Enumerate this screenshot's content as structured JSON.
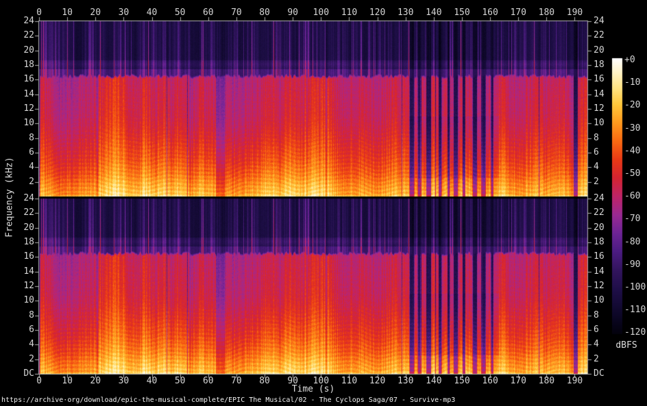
{
  "page": {
    "background": "#000000"
  },
  "title_comment": {
    "url_text": "https://archive·org/download/epic-the-musical-complete/EPIC The Musical/02 - The Cyclops Saga/07 - Survive·mp3"
  },
  "axes": {
    "time": {
      "label": "Time (s)",
      "ticks": [
        0,
        10,
        20,
        30,
        40,
        50,
        60,
        70,
        80,
        90,
        100,
        110,
        120,
        130,
        140,
        150,
        160,
        170,
        180,
        190
      ],
      "duration_s": 194.5
    },
    "frequency": {
      "label": "Frequency (kHz)",
      "max_khz": 24,
      "panel1_ticks": [
        "24",
        "22",
        "20",
        "18",
        "16",
        "14",
        "12",
        "10",
        "8",
        "6",
        "4",
        "2"
      ],
      "panel2_ticks": [
        "24",
        "22",
        "20",
        "18",
        "16",
        "14",
        "12",
        "10",
        "8",
        "6",
        "4",
        "2",
        "DC"
      ]
    }
  },
  "colorbar": {
    "unit_label": "dBFS",
    "ticks": [
      "+0",
      "-10",
      "-20",
      "-30",
      "-40",
      "-50",
      "-60",
      "-70",
      "-80",
      "-90",
      "-100",
      "-110",
      "-120"
    ]
  },
  "chart_data": {
    "type": "heatmap",
    "title": "https://archive·org/download/epic-the-musical-complete/EPIC The Musical/02 - The Cyclops Saga/07 - Survive·mp3",
    "xlabel": "Time (s)",
    "ylabel": "Frequency (kHz)",
    "x_range_s": [
      0,
      194.5
    ],
    "x_tick_step_s": 10,
    "y_range_khz": [
      0,
      24
    ],
    "y_tick_step_khz": 2,
    "z_unit": "dBFS",
    "z_range_db": [
      0,
      -120
    ],
    "channels": 2,
    "legend_position": "right-colorbar",
    "grid": false,
    "palette_stops": [
      [
        0,
        "#ffffff"
      ],
      [
        -6,
        "#fff4c8"
      ],
      [
        -13,
        "#ffe482"
      ],
      [
        -20,
        "#ffc83c"
      ],
      [
        -28,
        "#ff9a1e"
      ],
      [
        -36,
        "#fa6a12"
      ],
      [
        -44,
        "#ea3a16"
      ],
      [
        -52,
        "#d52432"
      ],
      [
        -60,
        "#c02468"
      ],
      [
        -68,
        "#9a2a92"
      ],
      [
        -76,
        "#6e2496"
      ],
      [
        -84,
        "#4c1c82"
      ],
      [
        -92,
        "#33155f"
      ],
      [
        -100,
        "#200f4a"
      ],
      [
        -108,
        "#130a33"
      ],
      [
        -116,
        "#070419"
      ],
      [
        -124,
        "#000000"
      ]
    ],
    "freq_profile_db": [
      [
        0,
        -8
      ],
      [
        0.4,
        -13
      ],
      [
        1.5,
        -17
      ],
      [
        3,
        -24
      ],
      [
        5,
        -30
      ],
      [
        8,
        -36
      ],
      [
        11,
        -41
      ],
      [
        14,
        -43
      ],
      [
        16.5,
        -45
      ]
    ],
    "features": {
      "mp3_lowpass_khz": 16.45,
      "hf_shelf_khz": [
        16.45,
        17.4
      ],
      "hf_haze_center_khz": 18.1,
      "hf_noise_floor_db": -103,
      "silence_head_s": 0.3,
      "silence_tail_s": 194.3,
      "quiet_intervals_s": [
        [
          131.4,
          132.9
        ],
        [
          134.3,
          135.1
        ],
        [
          137.3,
          138.9
        ],
        [
          141.7,
          142.6
        ],
        [
          144.9,
          145.5
        ],
        [
          147.0,
          148.4
        ],
        [
          150.2,
          150.8
        ],
        [
          153.8,
          155.2
        ],
        [
          157.1,
          158.2
        ],
        [
          160.3,
          160.9
        ],
        [
          189.6,
          190.8
        ]
      ],
      "mild_dips_s": [
        [
          62.5,
          66.0,
          0.72
        ],
        [
          20.3,
          20.9,
          0.8
        ],
        [
          101.4,
          102.0,
          0.82
        ]
      ],
      "staccato_section_s": [
        131,
        163
      ],
      "seed": 1337
    }
  }
}
